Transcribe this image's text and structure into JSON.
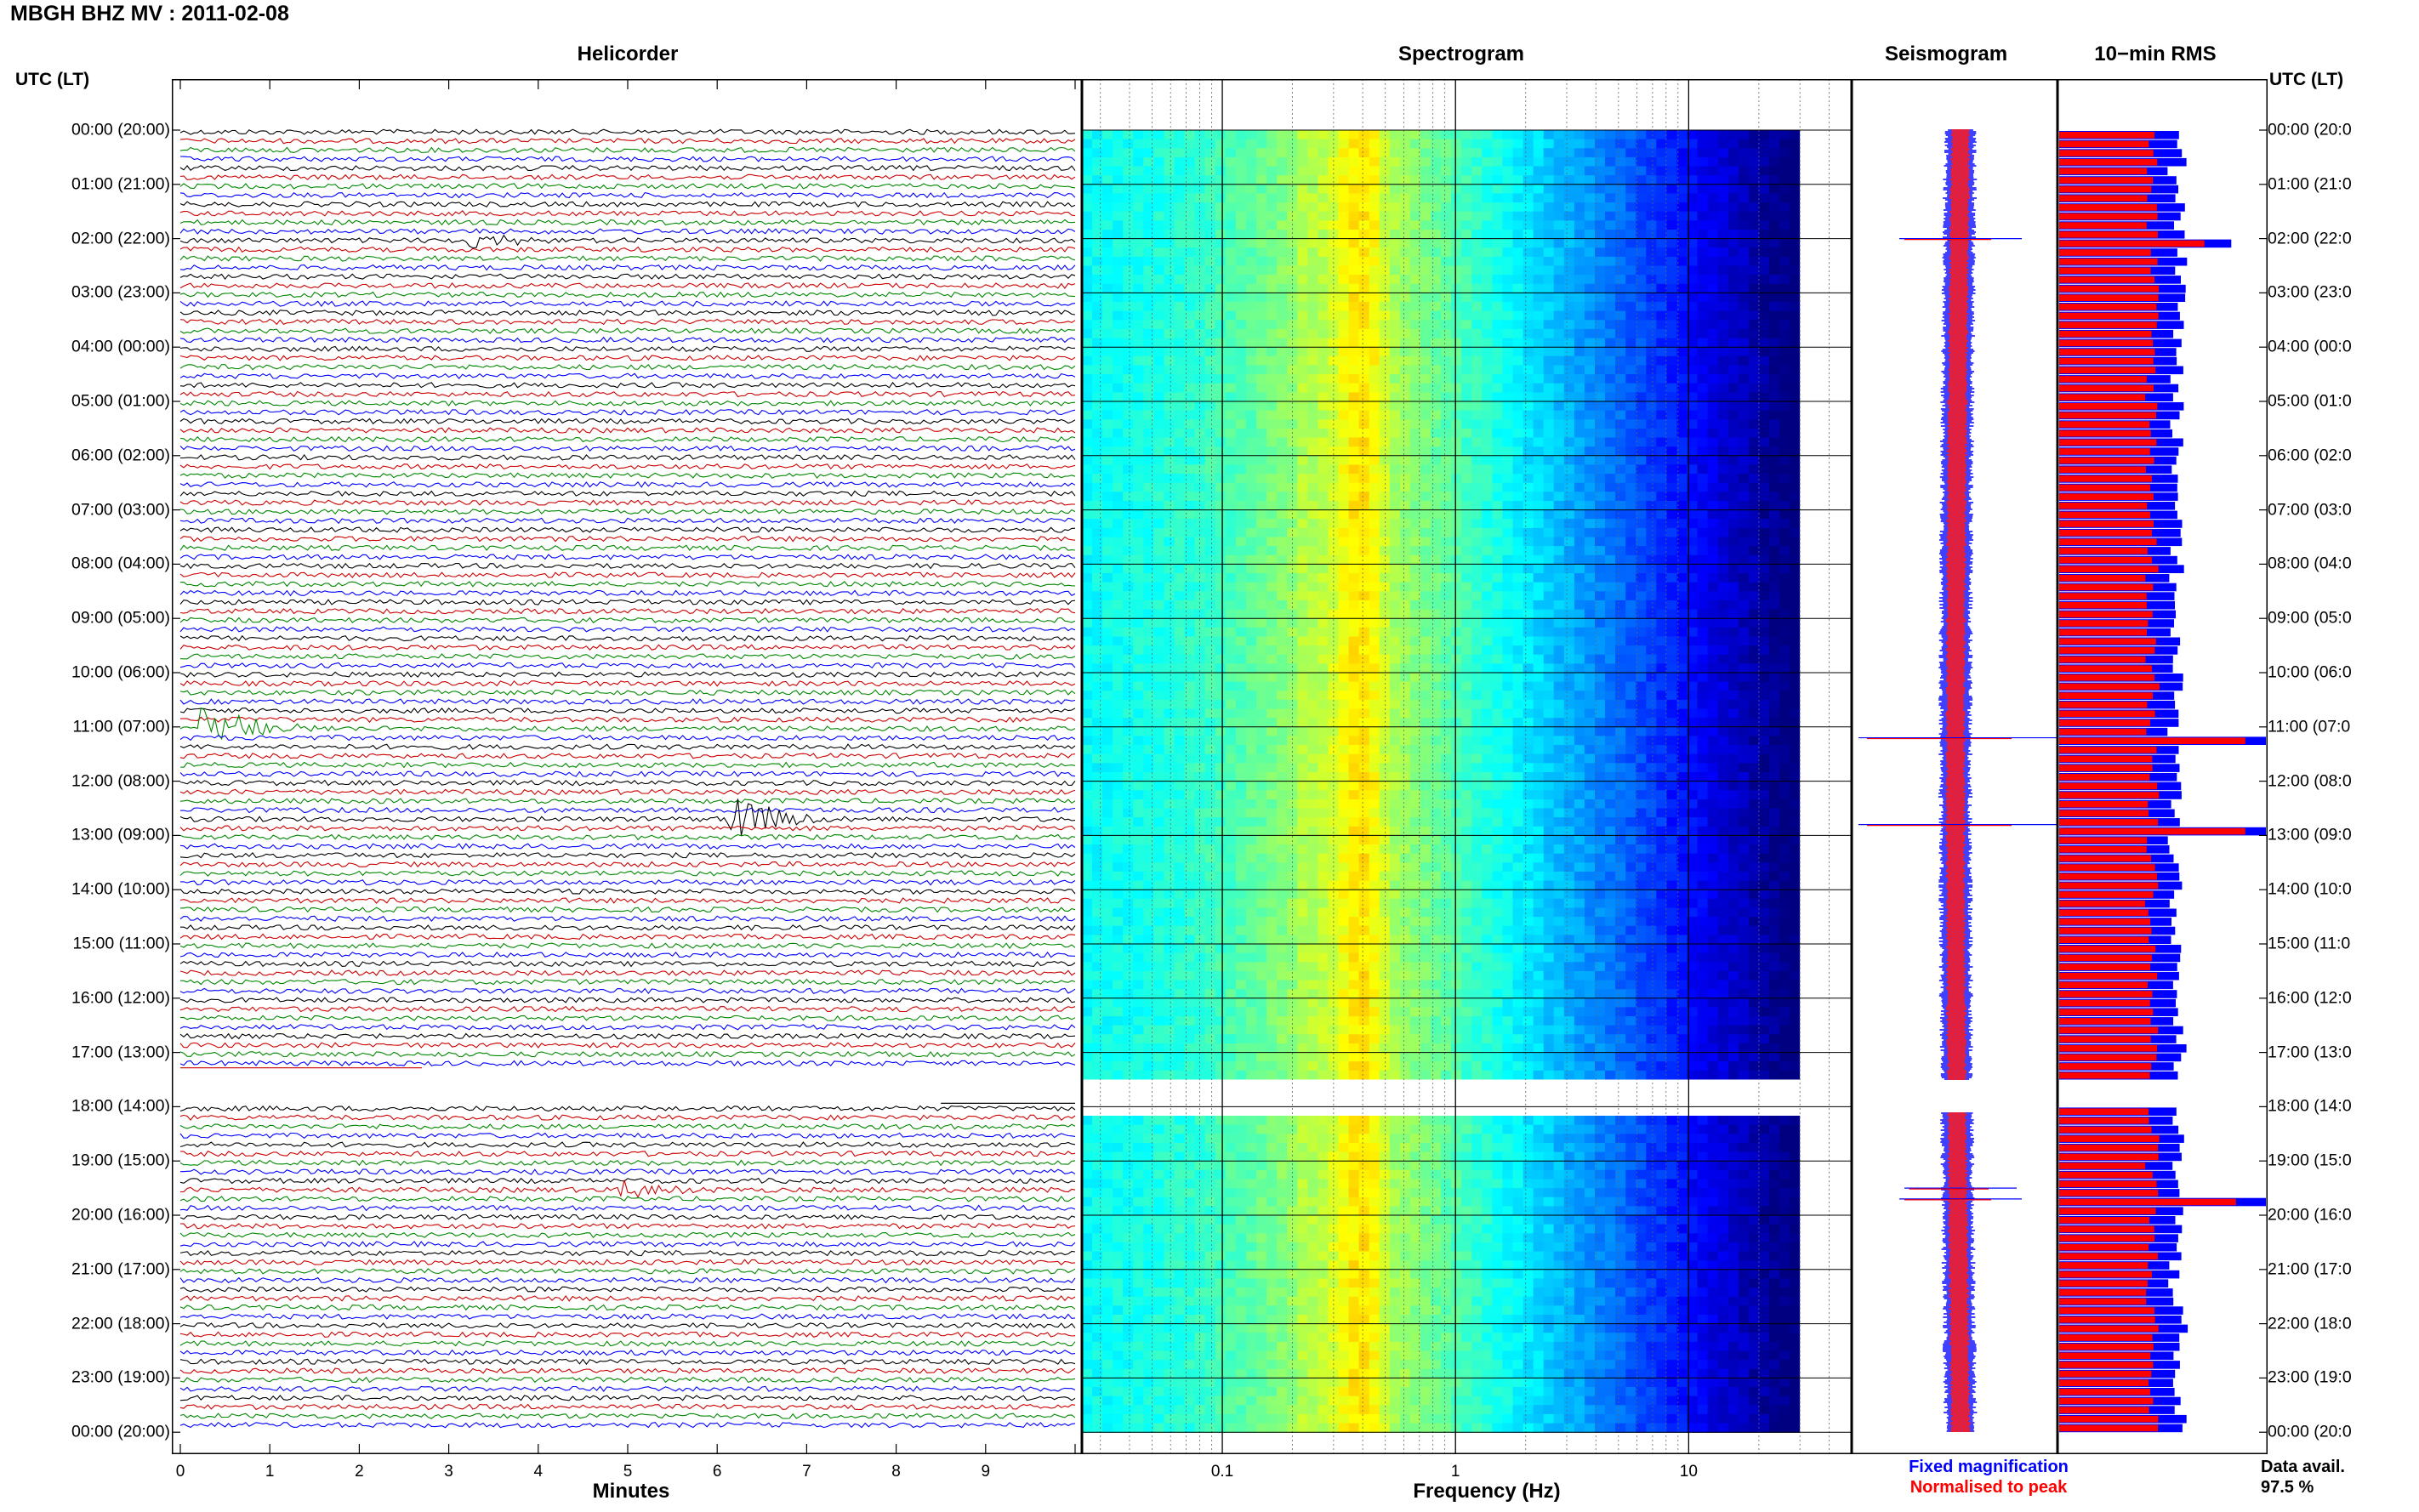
{
  "title": "MBGH BHZ MV : 2011-02-08",
  "panels": {
    "helicorder": "Helicorder",
    "spectrogram": "Spectrogram",
    "seismogram": "Seismogram",
    "rms": "10−min RMS"
  },
  "time_axis_header_left": "UTC (LT)",
  "time_axis_header_right": "UTC (LT)",
  "time_labels_left": [
    "00:00 (20:00)",
    "01:00 (21:00)",
    "02:00 (22:00)",
    "03:00 (23:00)",
    "04:00 (00:00)",
    "05:00 (01:00)",
    "06:00 (02:00)",
    "07:00 (03:00)",
    "08:00 (04:00)",
    "09:00 (05:00)",
    "10:00 (06:00)",
    "11:00 (07:00)",
    "12:00 (08:00)",
    "13:00 (09:00)",
    "14:00 (10:00)",
    "15:00 (11:00)",
    "16:00 (12:00)",
    "17:00 (13:00)",
    "18:00 (14:00)",
    "19:00 (15:00)",
    "20:00 (16:00)",
    "21:00 (17:00)",
    "22:00 (18:00)",
    "23:00 (19:00)",
    "00:00 (20:00)"
  ],
  "time_labels_right": [
    "00:00 (20:0",
    "01:00 (21:0",
    "02:00 (22:0",
    "03:00 (23:0",
    "04:00 (00:0",
    "05:00 (01:0",
    "06:00 (02:0",
    "07:00 (03:0",
    "08:00 (04:0",
    "09:00 (05:0",
    "10:00 (06:0",
    "11:00 (07:0",
    "12:00 (08:0",
    "13:00 (09:0",
    "14:00 (10:0",
    "15:00 (11:0",
    "16:00 (12:0",
    "17:00 (13:0",
    "18:00 (14:0",
    "19:00 (15:0",
    "20:00 (16:0",
    "21:00 (17:0",
    "22:00 (18:0",
    "23:00 (19:0",
    "00:00 (20:0"
  ],
  "legend": {
    "fixed": "Fixed magnification",
    "normalised": "Normalised to peak",
    "fixed_color": "#0000ff",
    "normalised_color": "#ff0000"
  },
  "data_avail_label": "Data avail.",
  "data_avail_value": "97.5 %",
  "colors": {
    "trace_cycle": [
      "#000000",
      "#cc0000",
      "#008800",
      "#0000ff"
    ],
    "rms_fixed": "#0000ff",
    "rms_normalised": "#ff0000"
  },
  "chart_data": [
    {
      "type": "line",
      "name": "helicorder",
      "title": "Helicorder",
      "xlabel": "Minutes",
      "x_ticks": [
        "0",
        "1",
        "2",
        "3",
        "4",
        "5",
        "6",
        "7",
        "8",
        "9"
      ],
      "xlim": [
        0,
        10
      ],
      "rows_per_hour": 6,
      "hours": 24,
      "data_gap_hours": [
        17.25,
        18.0
      ],
      "events": [
        {
          "hour": 2.0,
          "minute": 3.3,
          "amplitude": "medium"
        },
        {
          "hour": 11.1,
          "minute": 0.3,
          "amplitude": "large"
        },
        {
          "hour": 12.8,
          "minute": 6.2,
          "amplitude": "large"
        },
        {
          "hour": 19.6,
          "minute": 5.0,
          "amplitude": "medium"
        }
      ]
    },
    {
      "type": "heatmap",
      "name": "spectrogram",
      "title": "Spectrogram",
      "xlabel": "Frequency (Hz)",
      "x_scale": "log",
      "x_ticks": [
        "0.1",
        "1",
        "10"
      ],
      "xlim": [
        0.025,
        50
      ],
      "colormap": "jet",
      "peak_band_hz": [
        0.2,
        0.5
      ]
    },
    {
      "type": "line",
      "name": "seismogram",
      "title": "Seismogram",
      "series": [
        {
          "name": "Fixed magnification",
          "color": "#0000ff"
        },
        {
          "name": "Normalised to peak",
          "color": "#ff0000"
        }
      ]
    },
    {
      "type": "bar",
      "name": "rms",
      "title": "10−min RMS",
      "orientation": "horizontal",
      "bins_per_hour": 6,
      "gap_hours": [
        17.5,
        18.0
      ],
      "series": [
        {
          "name": "Fixed magnification",
          "color": "#0000ff"
        },
        {
          "name": "Normalised to peak",
          "color": "#ff0000"
        }
      ],
      "typical_level": 0.5,
      "peaks": [
        {
          "hour": 2.0,
          "value": 0.78
        },
        {
          "hour": 11.2,
          "value": 1.0
        },
        {
          "hour": 12.8,
          "value": 1.0
        },
        {
          "hour": 19.7,
          "value": 0.95
        }
      ]
    }
  ]
}
